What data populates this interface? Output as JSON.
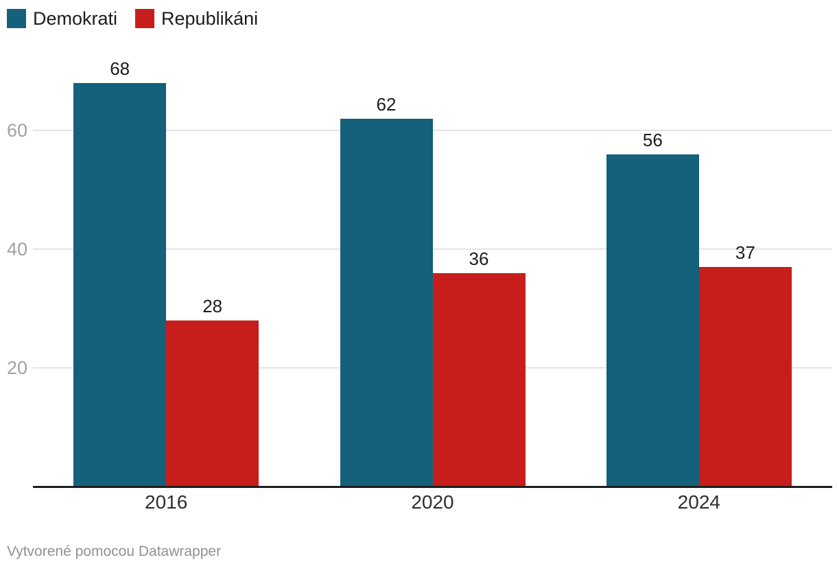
{
  "legend": {
    "items": [
      {
        "label": "Demokrati",
        "color": "#15607a"
      },
      {
        "label": "Republikáni",
        "color": "#c71e1d"
      }
    ]
  },
  "footer": {
    "prefix": "Vytvorené pomocou ",
    "link_label": "Datawrapper"
  },
  "colors": {
    "axis": "#1d1d1d",
    "grid": "#e4e4e4",
    "tick_label": "#a1a1a1",
    "value_label": "#1d1d1d",
    "category_label": "#2e2e2e",
    "footer": "#919191",
    "background": "#ffffff"
  },
  "chart_data": {
    "type": "bar",
    "categories": [
      "2016",
      "2020",
      "2024"
    ],
    "series": [
      {
        "name": "Demokrati",
        "color": "#15607a",
        "values": [
          68,
          62,
          56
        ]
      },
      {
        "name": "Republikáni",
        "color": "#c71e1d",
        "values": [
          28,
          36,
          37
        ]
      }
    ],
    "title": "",
    "xlabel": "",
    "ylabel": "",
    "ylim": [
      0,
      68
    ],
    "yticks": [
      20,
      40,
      60
    ],
    "grid": true,
    "grouped": true,
    "value_labels": true,
    "legend_position": "top-left"
  }
}
